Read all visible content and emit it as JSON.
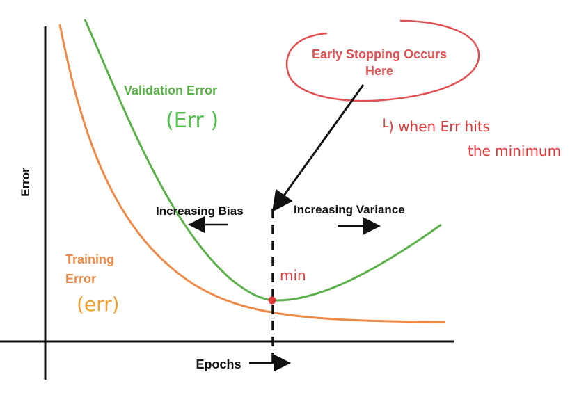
{
  "axes": {
    "y_label": "Error",
    "x_label": "Epochs"
  },
  "curves": {
    "validation": {
      "label": "Validation Error",
      "note": "(Err )",
      "color": "#5cb04a"
    },
    "training": {
      "label_line1": "Training",
      "label_line2": "Error",
      "note": "(err)",
      "color": "#ee8a48",
      "note_color": "#f0a030"
    }
  },
  "callout": {
    "line1": "Early Stopping Occurs",
    "line2": "Here",
    "color": "#e05050"
  },
  "regions": {
    "left": "Increasing Bias",
    "right": "Increasing Variance"
  },
  "annotations": {
    "min_label": "min",
    "hint_line1": "└) when Err hits",
    "hint_line2": "the minimum",
    "color": "#e03a3a"
  },
  "colors": {
    "axis": "#111111",
    "arrow": "#111111",
    "min_point": "#e03a3a"
  }
}
